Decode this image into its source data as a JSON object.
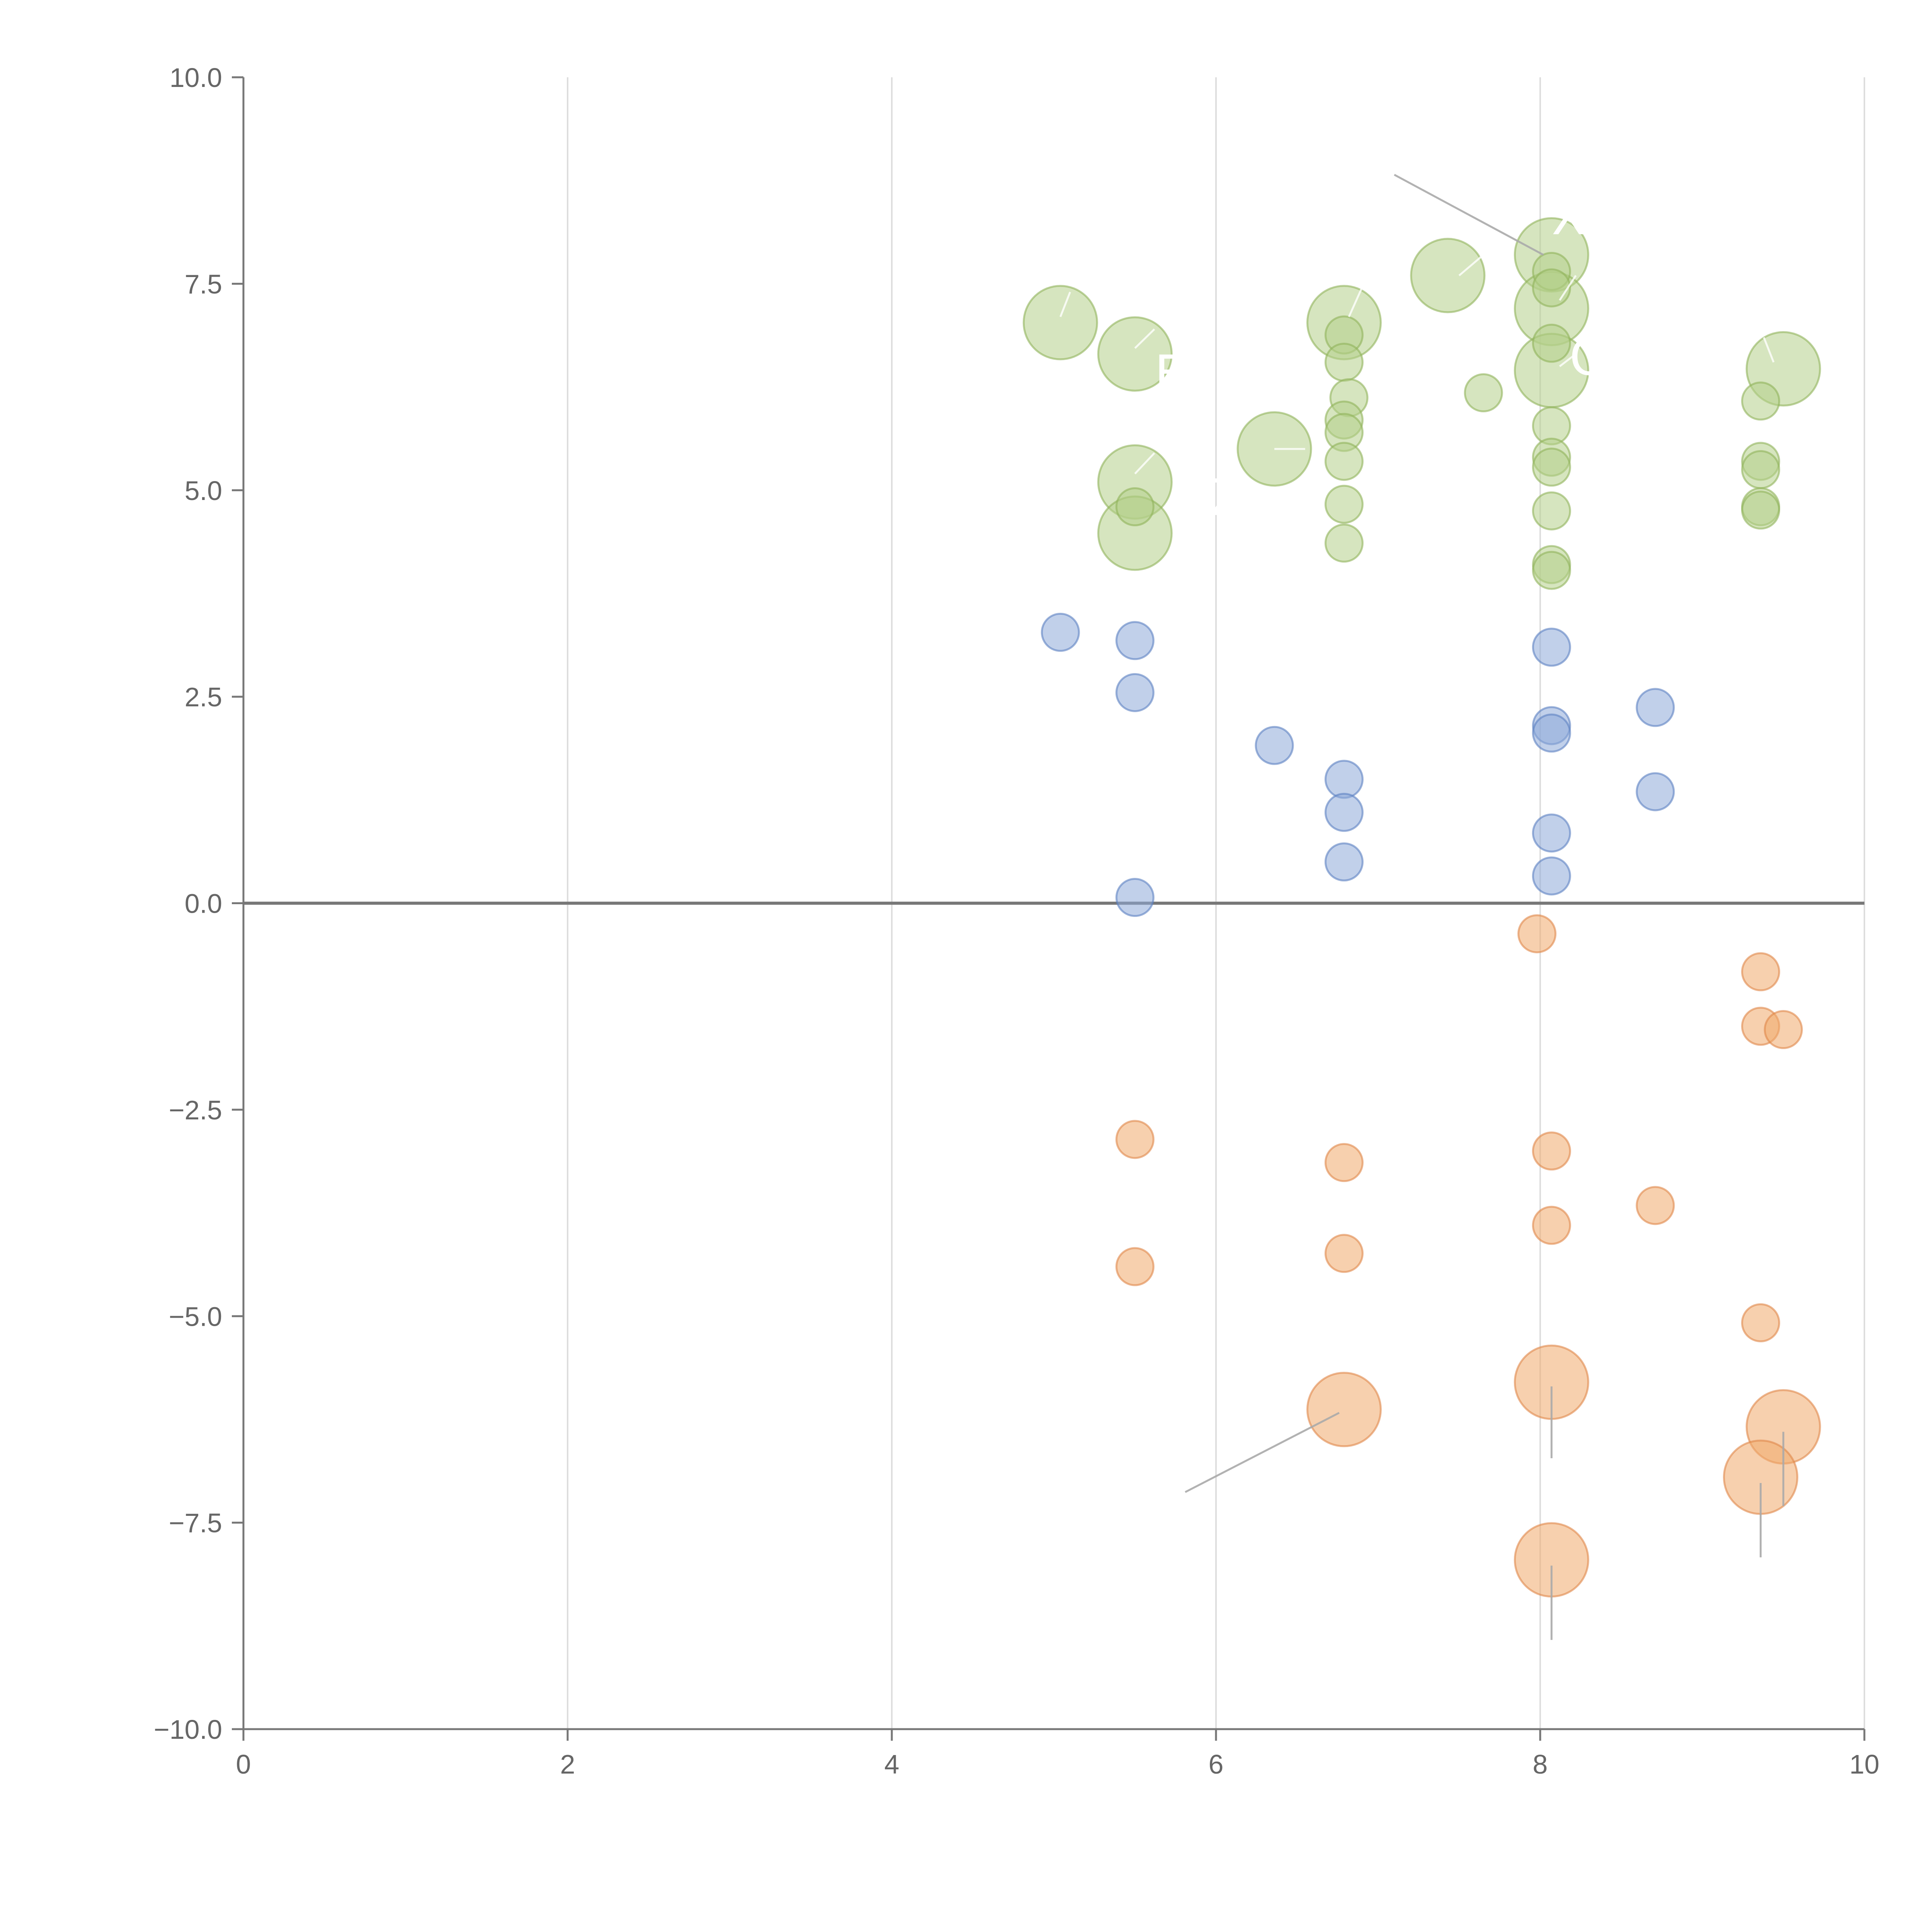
{
  "chart_data": {
    "type": "scatter",
    "title": "",
    "xlabel": "",
    "ylabel": "",
    "xlim": [
      0,
      10
    ],
    "ylim": [
      -10,
      10
    ],
    "grid": "vertical",
    "x_ticks": [
      "0",
      "2",
      "4",
      "6",
      "8",
      "10"
    ],
    "x_tick_values": [
      0,
      2,
      4,
      6,
      8,
      10
    ],
    "y_ticks": [
      "10.0",
      "7.5",
      "5.0",
      "2.5",
      "0.0",
      "−2.5",
      "−5.0",
      "−7.5",
      "−10.0"
    ],
    "y_tick_values": [
      10,
      7.5,
      5,
      2.5,
      0,
      -2.5,
      -5,
      -7.5,
      -10
    ],
    "colors": {
      "green_fill": "#b5cf8a",
      "green_stroke": "#8fb35a",
      "blue_fill": "#8ea9d8",
      "blue_stroke": "#5b80c2",
      "orange_fill": "#f0a96c",
      "orange_stroke": "#e0874a",
      "axis": "#777777",
      "grid": "#dddddd",
      "leader": "#aaaaaa",
      "annotation_text": "#ffffff"
    },
    "series": [
      {
        "name": "green",
        "points": [
          {
            "x": 5.04,
            "y": 7.03,
            "size": "large"
          },
          {
            "x": 5.5,
            "y": 6.65,
            "size": "large"
          },
          {
            "x": 5.5,
            "y": 5.1,
            "size": "large"
          },
          {
            "x": 5.5,
            "y": 4.48,
            "size": "large"
          },
          {
            "x": 5.5,
            "y": 4.8,
            "size": "small"
          },
          {
            "x": 6.36,
            "y": 5.5,
            "size": "large"
          },
          {
            "x": 6.79,
            "y": 7.03,
            "size": "large"
          },
          {
            "x": 6.79,
            "y": 6.88,
            "size": "small"
          },
          {
            "x": 6.79,
            "y": 6.55,
            "size": "small"
          },
          {
            "x": 6.82,
            "y": 6.12,
            "size": "small"
          },
          {
            "x": 6.79,
            "y": 5.85,
            "size": "small"
          },
          {
            "x": 6.79,
            "y": 5.7,
            "size": "small"
          },
          {
            "x": 6.79,
            "y": 5.35,
            "size": "small"
          },
          {
            "x": 6.79,
            "y": 4.83,
            "size": "small"
          },
          {
            "x": 6.79,
            "y": 4.36,
            "size": "small"
          },
          {
            "x": 7.43,
            "y": 7.6,
            "size": "large"
          },
          {
            "x": 7.65,
            "y": 6.18,
            "size": "small"
          },
          {
            "x": 8.07,
            "y": 7.85,
            "size": "large"
          },
          {
            "x": 8.07,
            "y": 7.65,
            "size": "small"
          },
          {
            "x": 8.07,
            "y": 7.45,
            "size": "small"
          },
          {
            "x": 8.07,
            "y": 7.2,
            "size": "large"
          },
          {
            "x": 8.07,
            "y": 6.78,
            "size": "small"
          },
          {
            "x": 8.07,
            "y": 6.45,
            "size": "large"
          },
          {
            "x": 8.07,
            "y": 5.78,
            "size": "small"
          },
          {
            "x": 8.07,
            "y": 5.4,
            "size": "small"
          },
          {
            "x": 8.07,
            "y": 5.28,
            "size": "small"
          },
          {
            "x": 8.07,
            "y": 4.75,
            "size": "small"
          },
          {
            "x": 8.07,
            "y": 4.1,
            "size": "small"
          },
          {
            "x": 8.07,
            "y": 4.03,
            "size": "small"
          },
          {
            "x": 9.36,
            "y": 6.08,
            "size": "small"
          },
          {
            "x": 9.36,
            "y": 5.35,
            "size": "small"
          },
          {
            "x": 9.36,
            "y": 5.25,
            "size": "small"
          },
          {
            "x": 9.36,
            "y": 4.8,
            "size": "small"
          },
          {
            "x": 9.36,
            "y": 4.76,
            "size": "small"
          },
          {
            "x": 9.5,
            "y": 6.47,
            "size": "large"
          }
        ]
      },
      {
        "name": "blue",
        "points": [
          {
            "x": 5.04,
            "y": 3.28,
            "size": "small"
          },
          {
            "x": 5.5,
            "y": 3.18,
            "size": "small"
          },
          {
            "x": 5.5,
            "y": 2.55,
            "size": "small"
          },
          {
            "x": 5.5,
            "y": 0.07,
            "size": "small"
          },
          {
            "x": 6.36,
            "y": 1.91,
            "size": "small"
          },
          {
            "x": 6.79,
            "y": 1.5,
            "size": "small"
          },
          {
            "x": 6.79,
            "y": 1.1,
            "size": "small"
          },
          {
            "x": 6.79,
            "y": 0.5,
            "size": "small"
          },
          {
            "x": 8.07,
            "y": 3.1,
            "size": "small"
          },
          {
            "x": 8.07,
            "y": 2.15,
            "size": "small"
          },
          {
            "x": 8.07,
            "y": 2.06,
            "size": "small"
          },
          {
            "x": 8.07,
            "y": 0.85,
            "size": "small"
          },
          {
            "x": 8.07,
            "y": 0.33,
            "size": "small"
          },
          {
            "x": 8.71,
            "y": 2.37,
            "size": "small"
          },
          {
            "x": 8.71,
            "y": 1.35,
            "size": "small"
          }
        ]
      },
      {
        "name": "orange",
        "points": [
          {
            "x": 7.98,
            "y": -0.37,
            "size": "small"
          },
          {
            "x": 9.36,
            "y": -0.83,
            "size": "small"
          },
          {
            "x": 9.36,
            "y": -1.49,
            "size": "small"
          },
          {
            "x": 9.5,
            "y": -1.53,
            "size": "small"
          },
          {
            "x": 5.5,
            "y": -2.86,
            "size": "small"
          },
          {
            "x": 5.5,
            "y": -4.4,
            "size": "small"
          },
          {
            "x": 6.79,
            "y": -3.14,
            "size": "small"
          },
          {
            "x": 6.79,
            "y": -4.24,
            "size": "small"
          },
          {
            "x": 8.07,
            "y": -3.0,
            "size": "small"
          },
          {
            "x": 8.07,
            "y": -3.9,
            "size": "small"
          },
          {
            "x": 8.71,
            "y": -3.66,
            "size": "small"
          },
          {
            "x": 9.36,
            "y": -5.08,
            "size": "small"
          },
          {
            "x": 6.79,
            "y": -6.13,
            "size": "large"
          },
          {
            "x": 8.07,
            "y": -5.8,
            "size": "large"
          },
          {
            "x": 9.5,
            "y": -6.34,
            "size": "large"
          },
          {
            "x": 9.36,
            "y": -6.95,
            "size": "large"
          },
          {
            "x": 8.07,
            "y": -7.95,
            "size": "large"
          }
        ]
      }
    ],
    "annotations": [
      {
        "text": "XA",
        "x": 8.07,
        "y": 8.1
      },
      {
        "text": "O",
        "x": 8.18,
        "y": 6.4
      },
      {
        "text": "O",
        "x": 6.97,
        "y": 5.55
      },
      {
        "text": "AZ",
        "x": 5.75,
        "y": 4.7
      },
      {
        "text": "E",
        "x": 5.62,
        "y": 6.2
      }
    ],
    "leader_lines": [
      {
        "x1": 7.1,
        "y1": 8.82,
        "x2": 8.02,
        "y2": 7.85
      },
      {
        "x1": 7.5,
        "y1": 7.6,
        "x2": 7.65,
        "y2": 7.85
      },
      {
        "x1": 5.04,
        "y1": 7.1,
        "x2": 5.1,
        "y2": 7.4
      },
      {
        "x1": 5.5,
        "y1": 6.72,
        "x2": 5.62,
        "y2": 6.95
      },
      {
        "x1": 5.5,
        "y1": 5.2,
        "x2": 5.62,
        "y2": 5.45
      },
      {
        "x1": 6.36,
        "y1": 5.5,
        "x2": 6.55,
        "y2": 5.5
      },
      {
        "x1": 6.82,
        "y1": 7.1,
        "x2": 6.9,
        "y2": 7.45
      },
      {
        "x1": 8.12,
        "y1": 7.3,
        "x2": 8.22,
        "y2": 7.6
      },
      {
        "x1": 8.12,
        "y1": 6.5,
        "x2": 8.22,
        "y2": 6.65
      },
      {
        "x1": 9.44,
        "y1": 6.55,
        "x2": 9.38,
        "y2": 6.85
      },
      {
        "x1": 5.81,
        "y1": -7.13,
        "x2": 6.76,
        "y2": -6.17
      },
      {
        "x1": 8.07,
        "y1": -5.85,
        "x2": 8.07,
        "y2": -6.72
      },
      {
        "x1": 9.5,
        "y1": -6.4,
        "x2": 9.5,
        "y2": -7.3
      },
      {
        "x1": 9.36,
        "y1": -7.02,
        "x2": 9.36,
        "y2": -7.92
      },
      {
        "x1": 8.07,
        "y1": -8.02,
        "x2": 8.07,
        "y2": -8.92
      }
    ]
  }
}
